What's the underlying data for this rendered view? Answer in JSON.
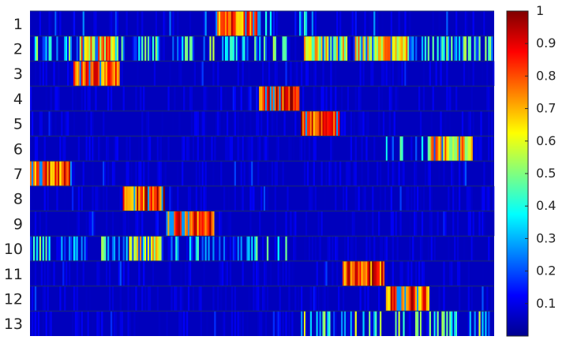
{
  "chart_data": {
    "type": "heatmap",
    "title": "",
    "xlabel": "",
    "ylabel": "",
    "row_labels": [
      "1",
      "2",
      "3",
      "4",
      "5",
      "6",
      "7",
      "8",
      "9",
      "10",
      "11",
      "12",
      "13"
    ],
    "n_columns": 300,
    "value_range": [
      0,
      1
    ],
    "colormap": "jet",
    "colorbar": {
      "ticks": [
        0.1,
        0.2,
        0.3,
        0.4,
        0.5,
        0.6,
        0.7,
        0.8,
        0.9,
        1
      ],
      "tick_labels": [
        "0.1",
        "0.2",
        "0.3",
        "0.4",
        "0.5",
        "0.6",
        "0.7",
        "0.8",
        "0.9",
        "1"
      ],
      "placement": "right"
    },
    "background_value": 0.06,
    "rows": [
      {
        "label": "1",
        "segments": [
          {
            "x": [
              121,
              149
            ],
            "level": 0.78
          }
        ],
        "sparse": [
          {
            "x": [
              0,
              300
            ],
            "density": 0.06,
            "level": 0.2
          },
          {
            "x": [
              150,
              180
            ],
            "density": 0.3,
            "level": 0.35
          }
        ]
      },
      {
        "label": "2",
        "segments": [
          {
            "x": [
              32,
              55
            ],
            "level": 0.65
          },
          {
            "x": [
              177,
              205
            ],
            "level": 0.55
          },
          {
            "x": [
              210,
              245
            ],
            "level": 0.6
          }
        ],
        "sparse": [
          {
            "x": [
              0,
              300
            ],
            "density": 0.35,
            "level": 0.4
          }
        ]
      },
      {
        "label": "3",
        "segments": [
          {
            "x": [
              28,
              58
            ],
            "level": 0.72
          }
        ],
        "sparse": [
          {
            "x": [
              0,
              300
            ],
            "density": 0.02,
            "level": 0.15
          }
        ]
      },
      {
        "label": "4",
        "segments": [
          {
            "x": [
              148,
              174
            ],
            "level": 0.82
          }
        ],
        "sparse": [
          {
            "x": [
              120,
              148
            ],
            "density": 0.2,
            "level": 0.15
          }
        ]
      },
      {
        "label": "5",
        "segments": [
          {
            "x": [
              175,
              200
            ],
            "level": 0.8
          }
        ],
        "sparse": [
          {
            "x": [
              0,
              300
            ],
            "density": 0.02,
            "level": 0.15
          }
        ]
      },
      {
        "label": "6",
        "segments": [
          {
            "x": [
              258,
              286
            ],
            "level": 0.62
          }
        ],
        "sparse": [
          {
            "x": [
              230,
              258
            ],
            "density": 0.25,
            "level": 0.35
          }
        ]
      },
      {
        "label": "7",
        "segments": [
          {
            "x": [
              0,
              27
            ],
            "level": 0.75
          }
        ],
        "sparse": [
          {
            "x": [
              0,
              300
            ],
            "density": 0.02,
            "level": 0.15
          }
        ]
      },
      {
        "label": "8",
        "segments": [
          {
            "x": [
              60,
              87
            ],
            "level": 0.8
          }
        ],
        "sparse": [
          {
            "x": [
              0,
              300
            ],
            "density": 0.02,
            "level": 0.15
          }
        ]
      },
      {
        "label": "9",
        "segments": [
          {
            "x": [
              88,
              119
            ],
            "level": 0.78
          }
        ],
        "sparse": [
          {
            "x": [
              0,
              300
            ],
            "density": 0.02,
            "level": 0.15
          }
        ]
      },
      {
        "label": "10",
        "segments": [
          {
            "x": [
              64,
              85
            ],
            "level": 0.55
          }
        ],
        "sparse": [
          {
            "x": [
              0,
              168
            ],
            "density": 0.35,
            "level": 0.4
          }
        ]
      },
      {
        "label": "11",
        "segments": [
          {
            "x": [
              202,
              229
            ],
            "level": 0.8
          }
        ],
        "sparse": [
          {
            "x": [
              0,
              300
            ],
            "density": 0.02,
            "level": 0.15
          }
        ]
      },
      {
        "label": "12",
        "segments": [
          {
            "x": [
              230,
              258
            ],
            "level": 0.78
          }
        ],
        "sparse": [
          {
            "x": [
              0,
              300
            ],
            "density": 0.02,
            "level": 0.15
          }
        ]
      },
      {
        "label": "13",
        "segments": [],
        "sparse": [
          {
            "x": [
              175,
              300
            ],
            "density": 0.3,
            "level": 0.45
          },
          {
            "x": [
              0,
              175
            ],
            "density": 0.03,
            "level": 0.15
          }
        ]
      }
    ]
  }
}
